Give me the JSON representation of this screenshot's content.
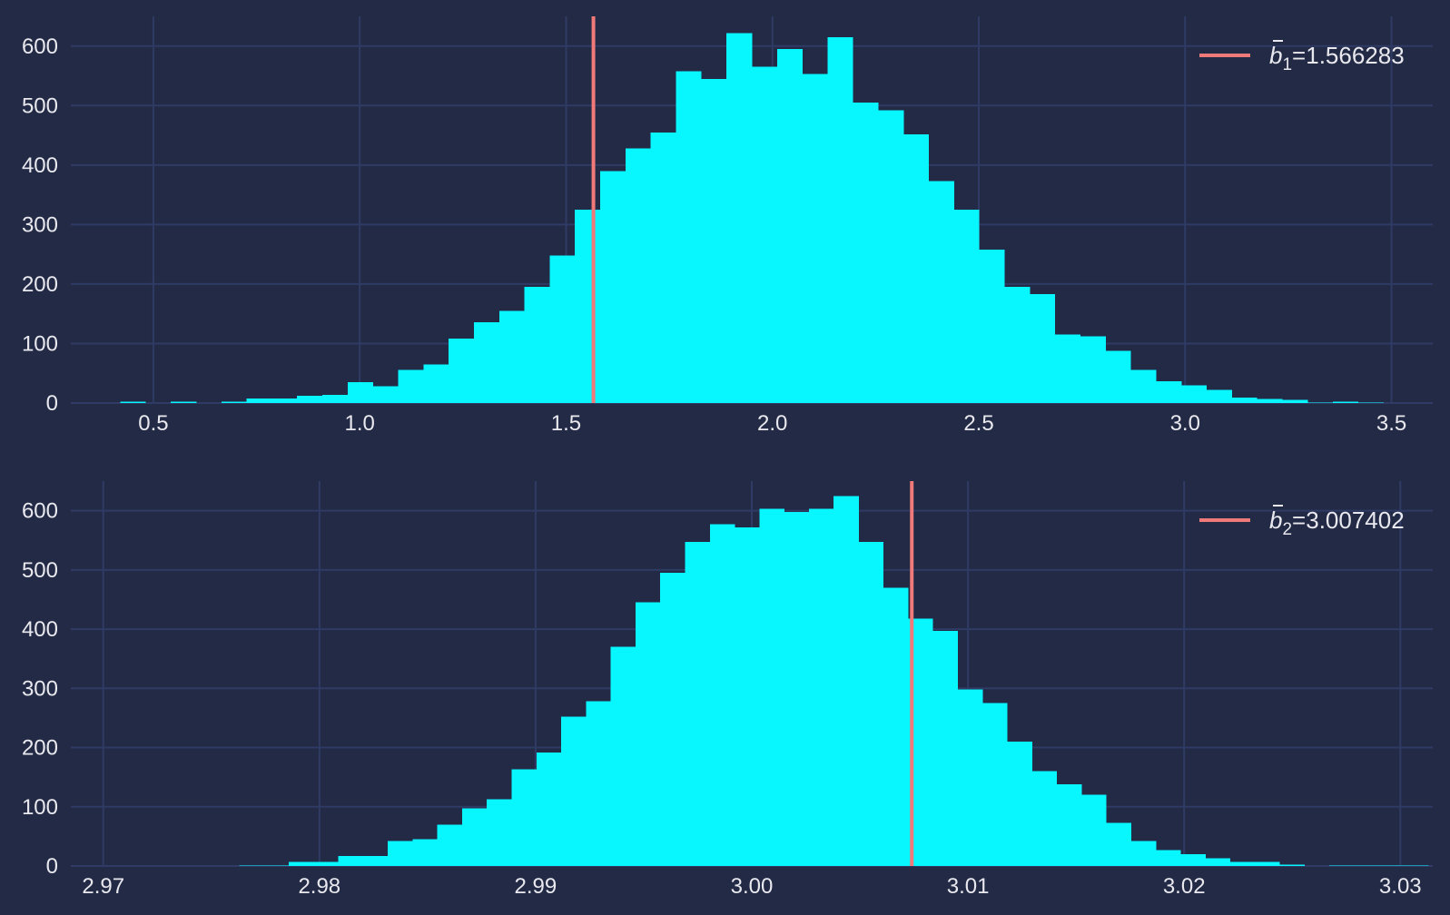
{
  "theme": {
    "background": "#222a45",
    "grid": "#2f3b64",
    "bar": "#08f7fe",
    "marker": "#f0797a",
    "text": "#e8e8ee"
  },
  "chart_data": [
    {
      "type": "bar",
      "title": "",
      "xlabel": "",
      "ylabel": "",
      "xlim": [
        0.3,
        3.6
      ],
      "ylim": [
        0,
        650
      ],
      "xticks": [
        0.5,
        1.0,
        1.5,
        2.0,
        2.5,
        3.0,
        3.5
      ],
      "xtick_labels": [
        "0.5",
        "1.0",
        "1.5",
        "2.0",
        "2.5",
        "3.0",
        "3.5"
      ],
      "yticks": [
        0,
        100,
        200,
        300,
        400,
        500,
        600
      ],
      "ytick_labels": [
        "0",
        "100",
        "200",
        "300",
        "400",
        "500",
        "600"
      ],
      "grid": true,
      "bin_start": 0.4199,
      "bin_width": 0.0612,
      "counts": [
        2,
        0,
        2,
        0,
        2,
        8,
        8,
        12,
        14,
        35,
        28,
        56,
        65,
        108,
        136,
        155,
        195,
        248,
        325,
        390,
        428,
        455,
        558,
        545,
        622,
        565,
        595,
        553,
        615,
        505,
        492,
        452,
        373,
        325,
        258,
        195,
        183,
        115,
        112,
        88,
        56,
        37,
        30,
        22,
        9,
        7,
        5,
        1,
        2,
        1
      ],
      "marker": {
        "x": 1.566283,
        "label_base": "b",
        "label_sub": "1",
        "label_rest": "=1.566283"
      },
      "legend_position": "top-right"
    },
    {
      "type": "bar",
      "title": "",
      "xlabel": "",
      "ylabel": "",
      "xlim": [
        2.9685,
        3.0315
      ],
      "ylim": [
        0,
        650
      ],
      "xticks": [
        2.97,
        2.98,
        2.99,
        3.0,
        3.01,
        3.02,
        3.03
      ],
      "xtick_labels": [
        "2.97",
        "2.98",
        "2.99",
        "3.00",
        "3.01",
        "3.02",
        "3.03"
      ],
      "yticks": [
        0,
        100,
        200,
        300,
        400,
        500,
        600
      ],
      "ytick_labels": [
        "0",
        "100",
        "200",
        "300",
        "400",
        "500",
        "600"
      ],
      "grid": true,
      "bin_start": 2.9717,
      "bin_width": 0.001146,
      "counts": [
        0,
        0,
        0,
        0,
        1,
        1,
        7,
        7,
        17,
        17,
        42,
        45,
        70,
        97,
        113,
        163,
        192,
        252,
        278,
        370,
        445,
        495,
        547,
        577,
        572,
        603,
        598,
        603,
        625,
        547,
        470,
        418,
        397,
        298,
        275,
        210,
        160,
        138,
        120,
        73,
        42,
        27,
        20,
        13,
        7,
        7,
        2,
        0,
        1,
        1,
        1,
        1
      ],
      "marker": {
        "x": 3.007402,
        "label_base": "b",
        "label_sub": "2",
        "label_rest": "=3.007402"
      },
      "legend_position": "top-right"
    }
  ]
}
